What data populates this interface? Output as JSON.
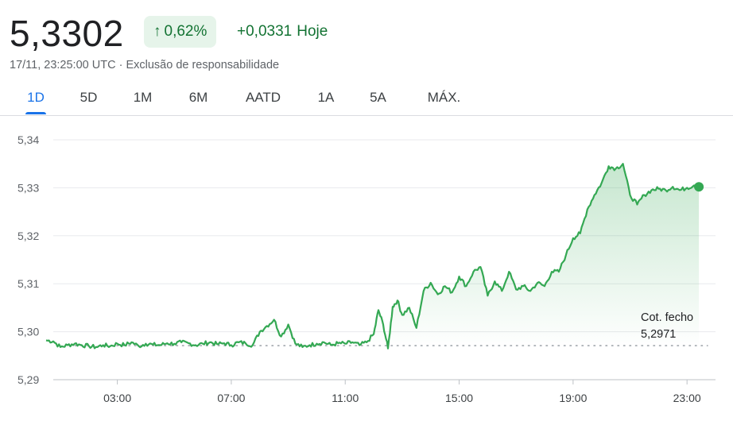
{
  "header": {
    "price": "5,3302",
    "change_percent": "0,62%",
    "change_arrow": "arrow-up-icon",
    "change_abs": "+0,0331",
    "change_period": "Hoje",
    "timestamp": "17/11, 23:25:00 UTC",
    "separator": "·",
    "disclaimer": "Exclusão de responsabilidade"
  },
  "tabs": [
    {
      "label": "1D",
      "active": true
    },
    {
      "label": "5D",
      "active": false
    },
    {
      "label": "1M",
      "active": false
    },
    {
      "label": "6M",
      "active": false
    },
    {
      "label": "AATD",
      "active": false
    },
    {
      "label": "1A",
      "active": false
    },
    {
      "label": "5A",
      "active": false
    },
    {
      "label": "MÁX.",
      "active": false
    }
  ],
  "colors": {
    "line": "#34a853",
    "positive_text": "#137333",
    "badge_bg": "#e6f4ea",
    "active_tab": "#1a73e8"
  },
  "chart_data": {
    "type": "line",
    "title": "",
    "xlabel": "",
    "ylabel": "",
    "ylim": [
      5.29,
      5.34
    ],
    "xlim": [
      "00:45",
      "24:00"
    ],
    "y_ticks": [
      "5,34",
      "5,33",
      "5,32",
      "5,31",
      "5,30",
      "5,29"
    ],
    "x_ticks": [
      "03:00",
      "07:00",
      "11:00",
      "15:00",
      "19:00",
      "23:00"
    ],
    "grid": true,
    "previous_close": {
      "label": "Cot. fecho",
      "value_label": "5,2971",
      "value": 5.2971
    },
    "series": [
      {
        "x": [
          "00:30",
          "00:45",
          "01:00",
          "01:15",
          "01:30",
          "01:45",
          "02:00",
          "02:15",
          "02:30",
          "02:45",
          "03:00",
          "03:15",
          "03:30",
          "03:45",
          "04:00",
          "04:15",
          "04:30",
          "04:45",
          "05:00",
          "05:15",
          "05:30",
          "05:45",
          "06:00",
          "06:15",
          "06:30",
          "06:45",
          "07:00",
          "07:15",
          "07:30",
          "07:45",
          "08:00",
          "08:15",
          "08:30",
          "08:45",
          "09:00",
          "09:15",
          "09:30",
          "09:45",
          "10:00",
          "10:15",
          "10:30",
          "10:45",
          "11:00",
          "11:15",
          "11:30",
          "11:45",
          "12:00",
          "12:10",
          "12:20",
          "12:30",
          "12:40",
          "12:50",
          "13:00",
          "13:15",
          "13:30",
          "13:45",
          "14:00",
          "14:15",
          "14:30",
          "14:45",
          "15:00",
          "15:15",
          "15:30",
          "15:45",
          "16:00",
          "16:15",
          "16:30",
          "16:45",
          "17:00",
          "17:15",
          "17:30",
          "17:45",
          "18:00",
          "18:15",
          "18:30",
          "18:45",
          "19:00",
          "19:15",
          "19:30",
          "19:45",
          "20:00",
          "20:15",
          "20:30",
          "20:45",
          "21:00",
          "21:15",
          "21:30",
          "21:45",
          "22:00",
          "22:15",
          "22:30",
          "22:45",
          "23:00",
          "23:15",
          "23:25"
        ],
        "values": [
          5.2982,
          5.298,
          5.2968,
          5.2972,
          5.2975,
          5.2972,
          5.297,
          5.2968,
          5.2972,
          5.297,
          5.2975,
          5.2972,
          5.2978,
          5.297,
          5.2975,
          5.2973,
          5.2972,
          5.2976,
          5.2975,
          5.2978,
          5.2976,
          5.2972,
          5.2975,
          5.2978,
          5.2974,
          5.2976,
          5.2972,
          5.2978,
          5.2976,
          5.2972,
          5.3,
          5.3012,
          5.3025,
          5.299,
          5.3015,
          5.2975,
          5.2968,
          5.2972,
          5.2975,
          5.2978,
          5.2972,
          5.2976,
          5.2975,
          5.2978,
          5.2972,
          5.2978,
          5.2995,
          5.3045,
          5.3015,
          5.2965,
          5.3052,
          5.3065,
          5.3035,
          5.305,
          5.3008,
          5.3085,
          5.3102,
          5.3078,
          5.3095,
          5.3082,
          5.3115,
          5.3095,
          5.3125,
          5.3135,
          5.3075,
          5.3105,
          5.3085,
          5.3125,
          5.3088,
          5.3095,
          5.3085,
          5.3102,
          5.3095,
          5.3125,
          5.3125,
          5.316,
          5.3195,
          5.3205,
          5.3255,
          5.3285,
          5.331,
          5.3345,
          5.334,
          5.335,
          5.3285,
          5.3265,
          5.3285,
          5.3295,
          5.3298,
          5.3295,
          5.3302,
          5.3295,
          5.33,
          5.3305,
          5.3302
        ]
      }
    ]
  }
}
